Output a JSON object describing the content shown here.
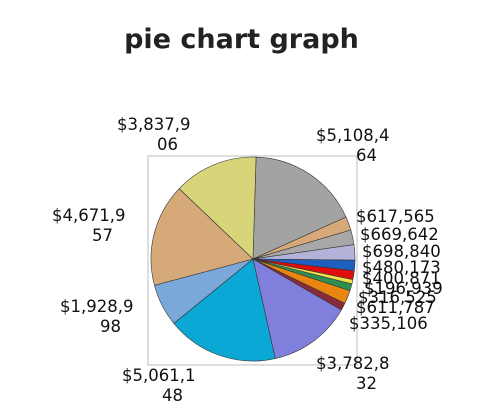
{
  "chart_data": {
    "type": "pie",
    "title": "pie chart graph",
    "slices": [
      {
        "label": "$5,108,464",
        "value": 5108464,
        "color": "#a3a3a3"
      },
      {
        "label": "$617,565",
        "value": 617565,
        "color": "#d6a87a"
      },
      {
        "label": "$669,642",
        "value": 669642,
        "color": "#a8a8a8"
      },
      {
        "label": "$698,840",
        "value": 698840,
        "color": "#b3b3d9"
      },
      {
        "label": "$480,173",
        "value": 480173,
        "color": "#1f5fbf"
      },
      {
        "label": "$400,871",
        "value": 400871,
        "color": "#e00d0d"
      },
      {
        "label": "$196,939",
        "value": 196939,
        "color": "#f0e24a"
      },
      {
        "label": "$316,525",
        "value": 316525,
        "color": "#2f8f52"
      },
      {
        "label": "$611,787",
        "value": 611787,
        "color": "#e8860f"
      },
      {
        "label": "$335,106",
        "value": 335106,
        "color": "#8a2a3a"
      },
      {
        "label": "$3,782,832",
        "value": 3782832,
        "color": "#8080dc"
      },
      {
        "label": "$5,061,148",
        "value": 5061148,
        "color": "#0ba8d6"
      },
      {
        "label": "$1,928,998",
        "value": 1928998,
        "color": "#7aa8d8"
      },
      {
        "label": "$4,671,957",
        "value": 4671957,
        "color": "#d6aa78"
      },
      {
        "label": "$3,837,906",
        "value": 3837906,
        "color": "#d8d47a"
      }
    ]
  }
}
